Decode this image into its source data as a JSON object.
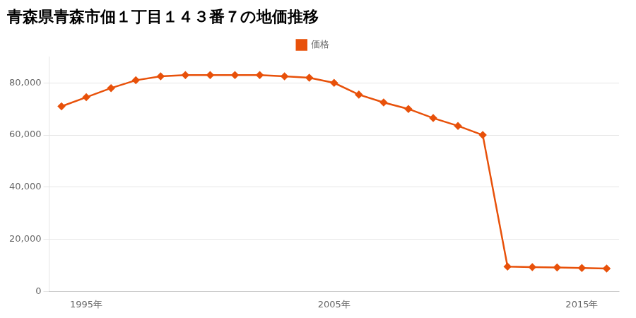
{
  "chart_data": {
    "type": "line",
    "title": "青森県青森市佃１丁目１４３番７の地価推移",
    "x": [
      1994,
      1995,
      1996,
      1997,
      1998,
      1999,
      2000,
      2001,
      2002,
      2003,
      2004,
      2005,
      2006,
      2007,
      2008,
      2009,
      2010,
      2011,
      2012,
      2013,
      2014,
      2015,
      2016
    ],
    "series": [
      {
        "name": "価格",
        "color": "#e8510a",
        "marker": "diamond",
        "line_style": "solid",
        "values": [
          71000,
          74500,
          78000,
          81000,
          82500,
          83000,
          83000,
          83000,
          83000,
          82500,
          82000,
          80000,
          75500,
          72500,
          70000,
          66500,
          63500,
          60000,
          9500,
          9300,
          9200,
          9000,
          8800
        ]
      }
    ],
    "xlim": [
      1993.5,
      2016.5
    ],
    "xticks": [
      {
        "value": 1995,
        "label": "1995年"
      },
      {
        "value": 2005,
        "label": "2005年"
      },
      {
        "value": 2015,
        "label": "2015年"
      }
    ],
    "ylim": [
      0,
      90000
    ],
    "yticks": [
      0,
      {
        "value": 20000,
        "label": "20,000"
      },
      {
        "value": 40000,
        "label": "40,000"
      },
      {
        "value": 60000,
        "label": "60,000"
      },
      {
        "value": 80000,
        "label": "80,000"
      }
    ],
    "grid": "y",
    "legend": "top"
  }
}
